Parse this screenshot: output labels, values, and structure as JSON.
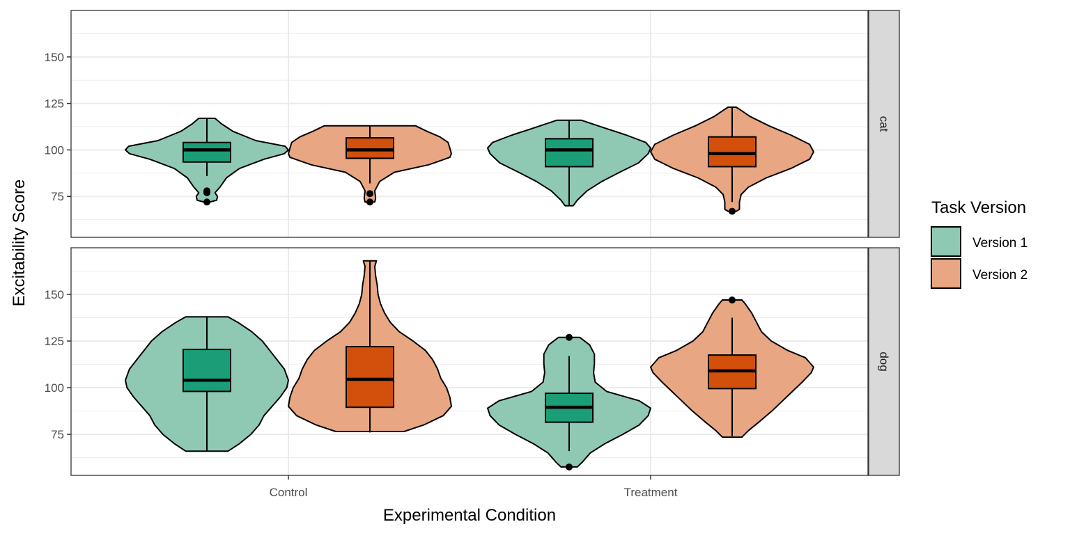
{
  "chart_data": {
    "type": "violin",
    "xlabel": "Experimental Condition",
    "ylabel": "Excitability Score",
    "categories": [
      "Control",
      "Treatment"
    ],
    "ylim": [
      53,
      175
    ],
    "yticks": [
      75,
      100,
      125,
      150
    ],
    "legend": {
      "title": "Task Version",
      "placement": "right",
      "entries": [
        {
          "label": "Version 1",
          "fill": "#8fc9b4",
          "box_fill": "#1b9e77"
        },
        {
          "label": "Version 2",
          "fill": "#e8a683",
          "box_fill": "#d24f0c"
        }
      ]
    },
    "facets": [
      {
        "label": "cat",
        "series": [
          {
            "category": "Control",
            "version": "Version 1",
            "box": {
              "min": 86,
              "q1": 93.5,
              "median": 100,
              "q3": 104,
              "max": 117
            },
            "outliers": [
              78,
              77,
              72
            ],
            "violin": [
              [
                72,
                0.04
              ],
              [
                73,
                0.12
              ],
              [
                75,
                0.13
              ],
              [
                77,
                0.1
              ],
              [
                80,
                0.16
              ],
              [
                85,
                0.24
              ],
              [
                90,
                0.4
              ],
              [
                95,
                0.7
              ],
              [
                98,
                0.95
              ],
              [
                100,
                1.0
              ],
              [
                102,
                0.96
              ],
              [
                105,
                0.6
              ],
              [
                110,
                0.32
              ],
              [
                114,
                0.18
              ],
              [
                117,
                0.1
              ]
            ]
          },
          {
            "category": "Control",
            "version": "Version 2",
            "box": {
              "min": 82,
              "q1": 95.5,
              "median": 100,
              "q3": 106.5,
              "max": 113
            },
            "outliers": [
              76.5,
              72
            ],
            "violin": [
              [
                72,
                0.06
              ],
              [
                74,
                0.07
              ],
              [
                78,
                0.06
              ],
              [
                83,
                0.12
              ],
              [
                88,
                0.3
              ],
              [
                92,
                0.72
              ],
              [
                96,
                0.98
              ],
              [
                98,
                1.0
              ],
              [
                101,
                0.98
              ],
              [
                104,
                0.96
              ],
              [
                107,
                0.86
              ],
              [
                110,
                0.7
              ],
              [
                113,
                0.56
              ]
            ]
          },
          {
            "category": "Treatment",
            "version": "Version 1",
            "box": {
              "min": 70,
              "q1": 91,
              "median": 100,
              "q3": 106,
              "max": 116
            },
            "outliers": [],
            "violin": [
              [
                70,
                0.05
              ],
              [
                73,
                0.1
              ],
              [
                78,
                0.22
              ],
              [
                83,
                0.4
              ],
              [
                88,
                0.62
              ],
              [
                93,
                0.85
              ],
              [
                98,
                0.97
              ],
              [
                101,
                1.0
              ],
              [
                104,
                0.94
              ],
              [
                108,
                0.7
              ],
              [
                112,
                0.42
              ],
              [
                116,
                0.15
              ]
            ]
          },
          {
            "category": "Treatment",
            "version": "Version 2",
            "box": {
              "min": 72,
              "q1": 91,
              "median": 98,
              "q3": 107,
              "max": 123
            },
            "outliers": [
              67
            ],
            "violin": [
              [
                67,
                0.05
              ],
              [
                68,
                0.09
              ],
              [
                72,
                0.09
              ],
              [
                76,
                0.11
              ],
              [
                80,
                0.2
              ],
              [
                85,
                0.42
              ],
              [
                90,
                0.72
              ],
              [
                95,
                0.95
              ],
              [
                99,
                1.0
              ],
              [
                103,
                0.95
              ],
              [
                108,
                0.72
              ],
              [
                113,
                0.45
              ],
              [
                118,
                0.22
              ],
              [
                121,
                0.12
              ],
              [
                123,
                0.05
              ]
            ]
          }
        ]
      },
      {
        "label": "dog",
        "series": [
          {
            "category": "Control",
            "version": "Version 1",
            "box": {
              "min": 66,
              "q1": 98,
              "median": 104,
              "q3": 120.5,
              "max": 138
            },
            "outliers": [],
            "violin": [
              [
                66,
                0.26
              ],
              [
                70,
                0.4
              ],
              [
                75,
                0.54
              ],
              [
                80,
                0.64
              ],
              [
                85,
                0.7
              ],
              [
                90,
                0.8
              ],
              [
                95,
                0.9
              ],
              [
                100,
                0.98
              ],
              [
                104,
                1.0
              ],
              [
                110,
                0.95
              ],
              [
                115,
                0.86
              ],
              [
                120,
                0.77
              ],
              [
                125,
                0.68
              ],
              [
                130,
                0.55
              ],
              [
                135,
                0.38
              ],
              [
                138,
                0.26
              ]
            ]
          },
          {
            "category": "Control",
            "version": "Version 2",
            "box": {
              "min": 76,
              "q1": 89.5,
              "median": 104.5,
              "q3": 122,
              "max": 168
            },
            "outliers": [],
            "violin": [
              [
                76.5,
                0.42
              ],
              [
                80,
                0.66
              ],
              [
                85,
                0.9
              ],
              [
                90,
                1.0
              ],
              [
                95,
                0.98
              ],
              [
                100,
                0.94
              ],
              [
                105,
                0.87
              ],
              [
                110,
                0.83
              ],
              [
                115,
                0.77
              ],
              [
                120,
                0.68
              ],
              [
                125,
                0.53
              ],
              [
                130,
                0.36
              ],
              [
                135,
                0.25
              ],
              [
                140,
                0.18
              ],
              [
                145,
                0.13
              ],
              [
                150,
                0.1
              ],
              [
                155,
                0.09
              ],
              [
                160,
                0.07
              ],
              [
                165,
                0.06
              ],
              [
                168,
                0.08
              ]
            ]
          },
          {
            "category": "Treatment",
            "version": "Version 1",
            "box": {
              "min": 66,
              "q1": 81.5,
              "median": 89.5,
              "q3": 97,
              "max": 117
            },
            "outliers": [
              127,
              57.5
            ],
            "violin": [
              [
                57.5,
                0.1
              ],
              [
                60,
                0.16
              ],
              [
                65,
                0.26
              ],
              [
                70,
                0.44
              ],
              [
                75,
                0.66
              ],
              [
                80,
                0.86
              ],
              [
                85,
                0.97
              ],
              [
                89,
                1.0
              ],
              [
                93,
                0.86
              ],
              [
                98,
                0.46
              ],
              [
                103,
                0.32
              ],
              [
                108,
                0.3
              ],
              [
                113,
                0.31
              ],
              [
                118,
                0.31
              ],
              [
                123,
                0.25
              ],
              [
                127,
                0.13
              ]
            ]
          },
          {
            "category": "Treatment",
            "version": "Version 2",
            "box": {
              "min": 74,
              "q1": 99.5,
              "median": 109,
              "q3": 117.5,
              "max": 137.5
            },
            "outliers": [
              147
            ],
            "violin": [
              [
                73.5,
                0.12
              ],
              [
                77,
                0.2
              ],
              [
                82,
                0.34
              ],
              [
                88,
                0.5
              ],
              [
                93,
                0.62
              ],
              [
                98,
                0.74
              ],
              [
                103,
                0.86
              ],
              [
                108,
                0.97
              ],
              [
                111,
                1.0
              ],
              [
                116,
                0.9
              ],
              [
                120,
                0.68
              ],
              [
                125,
                0.48
              ],
              [
                130,
                0.36
              ],
              [
                135,
                0.3
              ],
              [
                140,
                0.24
              ],
              [
                145,
                0.16
              ],
              [
                147,
                0.12
              ]
            ]
          }
        ]
      }
    ]
  }
}
